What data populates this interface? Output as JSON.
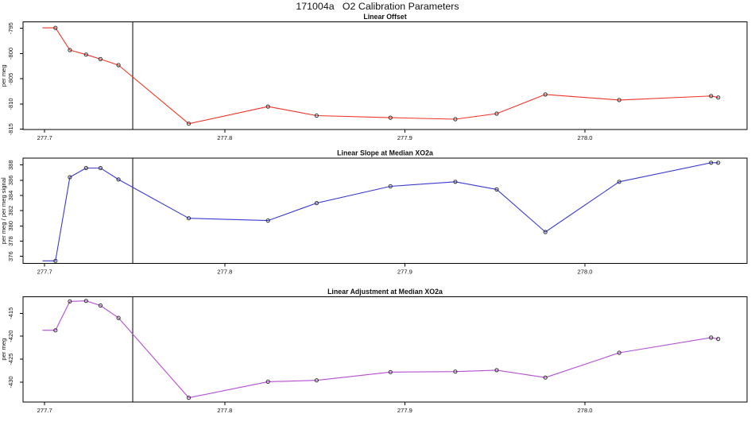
{
  "title": "171004a   O2 Calibration Parameters",
  "colors": {
    "background": "#ffffff",
    "axis": "#000000",
    "marker_outline": "#2f2f2f",
    "reference_line": "#000000",
    "offset_series": "#f03428",
    "slope_series": "#3b3bd1",
    "adjustment_series": "#b44fd0"
  },
  "chart_data": [
    {
      "type": "line",
      "id": "linear-offset",
      "title": "Linear Offset",
      "xlabel": "",
      "ylabel": "per meg",
      "color": "#f03428",
      "marker": "open-circle",
      "grid": false,
      "legend": null,
      "x_line_start": 277.699,
      "x": [
        277.706,
        277.714,
        277.723,
        277.731,
        277.741,
        277.78,
        277.824,
        277.851,
        277.892,
        277.928,
        277.951,
        277.978,
        278.019,
        278.07,
        278.074
      ],
      "y": [
        -794.9,
        -799.3,
        -800.2,
        -801.1,
        -802.3,
        -813.9,
        -810.5,
        -812.3,
        -812.7,
        -813.0,
        -811.9,
        -808.1,
        -809.2,
        -808.4,
        -808.7
      ],
      "xlim": [
        277.688,
        278.09
      ],
      "ylim": [
        -815.05,
        -793.74
      ],
      "xticks": [
        277.7,
        277.8,
        277.9,
        278.0
      ],
      "xtick_labels": [
        "277.7",
        "277.8",
        "277.9",
        "278.0"
      ],
      "yticks": [
        -795,
        -800,
        -805,
        -810,
        -815
      ],
      "ytick_labels": [
        "-795",
        "-800",
        "-805",
        "-810",
        "-815"
      ],
      "vline": 277.749
    },
    {
      "type": "line",
      "id": "linear-slope",
      "title": "Linear Slope at Median XO2a",
      "xlabel": "",
      "ylabel": "per meg / per meg signal",
      "color": "#3b3bd1",
      "marker": "open-circle",
      "grid": false,
      "legend": null,
      "x_line_start": 277.699,
      "x": [
        277.706,
        277.714,
        277.723,
        277.731,
        277.741,
        277.78,
        277.824,
        277.851,
        277.892,
        277.928,
        277.951,
        277.978,
        278.019,
        278.07,
        278.074
      ],
      "y": [
        375.4,
        386.4,
        387.6,
        387.6,
        386.1,
        381.0,
        380.7,
        383.0,
        385.2,
        385.8,
        384.8,
        379.2,
        385.8,
        388.3,
        388.3
      ],
      "xlim": [
        277.688,
        278.09
      ],
      "ylim": [
        375.05,
        388.91
      ],
      "xticks": [
        277.7,
        277.8,
        277.9,
        278.0
      ],
      "xtick_labels": [
        "277.7",
        "277.8",
        "277.9",
        "278.0"
      ],
      "yticks": [
        376,
        378,
        380,
        382,
        384,
        386,
        388
      ],
      "ytick_labels": [
        "376",
        "378",
        "380",
        "382",
        "384",
        "386",
        "388"
      ],
      "vline": 277.749
    },
    {
      "type": "line",
      "id": "linear-adjustment",
      "title": "Linear Adjustment at Median XO2a",
      "xlabel": "",
      "ylabel": "per meg",
      "color": "#b44fd0",
      "marker": "open-circle",
      "grid": false,
      "legend": null,
      "x_line_start": 277.699,
      "x": [
        277.706,
        277.714,
        277.723,
        277.731,
        277.741,
        277.78,
        277.824,
        277.851,
        277.892,
        277.928,
        277.951,
        277.978,
        278.019,
        278.07,
        278.074
      ],
      "y": [
        -418.7,
        -412.4,
        -412.3,
        -413.3,
        -416.0,
        -433.4,
        -429.9,
        -429.6,
        -427.8,
        -427.7,
        -427.4,
        -429.0,
        -423.6,
        -420.3,
        -420.6
      ],
      "xlim": [
        277.688,
        278.09
      ],
      "ylim": [
        -434.33,
        -411.37
      ],
      "xticks": [
        277.7,
        277.8,
        277.9,
        278.0
      ],
      "xtick_labels": [
        "277.7",
        "277.8",
        "277.9",
        "278.0"
      ],
      "yticks": [
        -415,
        -420,
        -425,
        -430
      ],
      "ytick_labels": [
        "-415",
        "-420",
        "-425",
        "-430"
      ],
      "vline": 277.749
    }
  ]
}
